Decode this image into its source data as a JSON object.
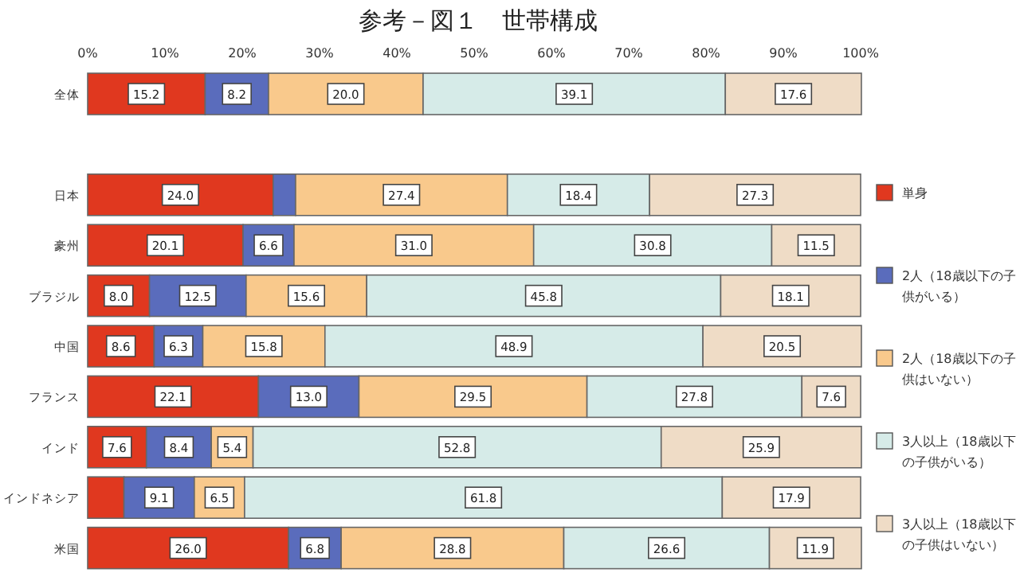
{
  "chart_data": {
    "type": "bar",
    "orientation": "horizontal",
    "stacked": true,
    "title": "参考－図１　世帯構成",
    "categories": [
      "全体",
      null,
      "日本",
      "豪州",
      "ブラジル",
      "中国",
      "フランス",
      "インド",
      "インドネシア",
      "米国"
    ],
    "xlim": [
      0,
      100
    ],
    "xticks": [
      {
        "value": 0,
        "label": "0%"
      },
      {
        "value": 10,
        "label": "10%"
      },
      {
        "value": 20,
        "label": "20%"
      },
      {
        "value": 30,
        "label": "30%"
      },
      {
        "value": 40,
        "label": "40%"
      },
      {
        "value": 50,
        "label": "50%"
      },
      {
        "value": 60,
        "label": "60%"
      },
      {
        "value": 70,
        "label": "70%"
      },
      {
        "value": 80,
        "label": "80%"
      },
      {
        "value": 90,
        "label": "90%"
      },
      {
        "value": 100,
        "label": "100%"
      }
    ],
    "legend": "right",
    "series": [
      {
        "name": "単身",
        "color": "#e0381f",
        "values": [
          15.2,
          null,
          24.0,
          20.1,
          8.0,
          8.6,
          22.1,
          7.6,
          4.7,
          26.0
        ],
        "value_labels": [
          "15.2",
          null,
          "24.0",
          "20.1",
          "8.0",
          "8.6",
          "22.1",
          "7.6",
          null,
          "26.0"
        ]
      },
      {
        "name": "2人（18歳以下の子供がいる）",
        "color": "#5a6cbc",
        "values": [
          8.2,
          null,
          2.9,
          6.6,
          12.5,
          6.3,
          13.0,
          8.4,
          9.1,
          6.8
        ],
        "value_labels": [
          "8.2",
          null,
          null,
          "6.6",
          "12.5",
          "6.3",
          "13.0",
          "8.4",
          "9.1",
          "6.8"
        ]
      },
      {
        "name": "2人（18歳以下の子供はいない）",
        "color": "#f9c98c",
        "values": [
          20.0,
          null,
          27.4,
          31.0,
          15.6,
          15.8,
          29.5,
          5.4,
          6.5,
          28.8
        ],
        "value_labels": [
          "20.0",
          null,
          "27.4",
          "31.0",
          "15.6",
          "15.8",
          "29.5",
          "5.4",
          "6.5",
          "28.8"
        ]
      },
      {
        "name": "3人以上（18歳以下の子供がいる）",
        "color": "#d6ebe8",
        "values": [
          39.1,
          null,
          18.4,
          30.8,
          45.8,
          48.9,
          27.8,
          52.8,
          61.8,
          26.6
        ],
        "value_labels": [
          "39.1",
          null,
          "18.4",
          "30.8",
          "45.8",
          "48.9",
          "27.8",
          "52.8",
          "61.8",
          "26.6"
        ]
      },
      {
        "name": "3人以上（18歳以下の子供はいない）",
        "color": "#efdcc6",
        "values": [
          17.6,
          null,
          27.3,
          11.5,
          18.1,
          20.5,
          7.6,
          25.9,
          17.9,
          11.9
        ],
        "value_labels": [
          "17.6",
          null,
          "27.3",
          "11.5",
          "18.1",
          "20.5",
          "7.6",
          "25.9",
          "17.9",
          "11.9"
        ]
      }
    ]
  }
}
